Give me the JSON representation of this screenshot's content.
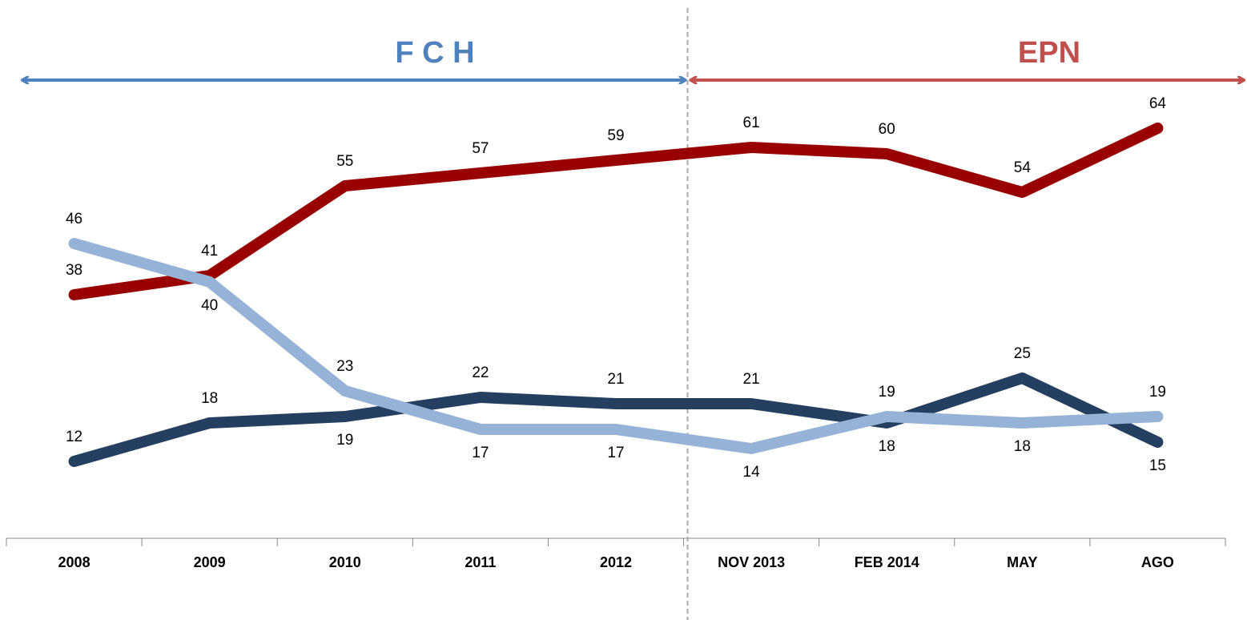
{
  "chart_data": {
    "type": "line",
    "categories": [
      "2008",
      "2009",
      "2010",
      "2011",
      "2012",
      "NOV 2013",
      "FEB 2014",
      "MAY",
      "AGO"
    ],
    "series": [
      {
        "color": "#990000",
        "values": [
          38,
          41,
          55,
          57,
          59,
          61,
          60,
          54,
          64
        ]
      },
      {
        "color": "#243f60",
        "values": [
          12,
          18,
          19,
          22,
          21,
          21,
          18,
          25,
          15
        ]
      },
      {
        "color": "#95b3d7",
        "values": [
          46,
          40,
          23,
          17,
          17,
          14,
          19,
          18,
          19
        ]
      }
    ],
    "ylim": [
      0,
      80
    ],
    "periods": [
      {
        "label": "F C H",
        "color": "#4f81bd"
      },
      {
        "label": "EPN",
        "color": "#c0504d"
      }
    ]
  }
}
